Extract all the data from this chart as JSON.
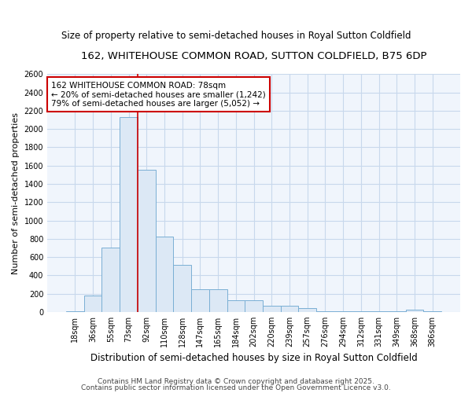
{
  "title": "162, WHITEHOUSE COMMON ROAD, SUTTON COLDFIELD, B75 6DP",
  "subtitle": "Size of property relative to semi-detached houses in Royal Sutton Coldfield",
  "xlabel": "Distribution of semi-detached houses by size in Royal Sutton Coldfield",
  "ylabel": "Number of semi-detached properties",
  "footer1": "Contains HM Land Registry data © Crown copyright and database right 2025.",
  "footer2": "Contains public sector information licensed under the Open Government Licence v3.0.",
  "bin_labels": [
    "18sqm",
    "36sqm",
    "55sqm",
    "73sqm",
    "92sqm",
    "110sqm",
    "128sqm",
    "147sqm",
    "165sqm",
    "184sqm",
    "202sqm",
    "220sqm",
    "239sqm",
    "257sqm",
    "276sqm",
    "294sqm",
    "312sqm",
    "331sqm",
    "349sqm",
    "368sqm",
    "386sqm"
  ],
  "bar_heights": [
    10,
    175,
    700,
    2130,
    1555,
    825,
    510,
    250,
    250,
    125,
    125,
    65,
    65,
    40,
    5,
    5,
    5,
    5,
    5,
    20,
    5
  ],
  "bar_color": "#dce8f5",
  "bar_edge_color": "#7aafd4",
  "grid_color": "#c8d8ec",
  "background_color": "#ffffff",
  "plot_bg_color": "#f0f5fc",
  "red_line_x": 3.5,
  "annotation_line1": "162 WHITEHOUSE COMMON ROAD: 78sqm",
  "annotation_line2": "← 20% of semi-detached houses are smaller (1,242)",
  "annotation_line3": "79% of semi-detached houses are larger (5,052) →",
  "annotation_box_color": "#ffffff",
  "annotation_box_edge": "#cc0000",
  "ylim": [
    0,
    2600
  ],
  "title_fontsize": 9.5,
  "subtitle_fontsize": 8.5,
  "tick_fontsize": 7,
  "ylabel_fontsize": 8,
  "xlabel_fontsize": 8.5,
  "annotation_fontsize": 7.5,
  "footer_fontsize": 6.5
}
